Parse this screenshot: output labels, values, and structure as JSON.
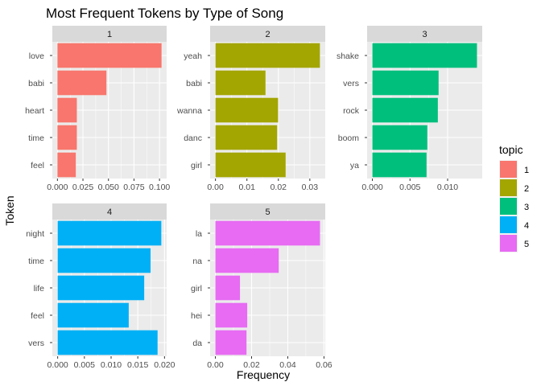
{
  "chart_data": {
    "type": "bar",
    "orientation": "horizontal",
    "title": "Most Frequent Tokens by Type of Song",
    "xlabel": "Frequency",
    "ylabel": "Token",
    "facet_layout": "3 columns x 2 rows",
    "grid": true,
    "legend": {
      "title": "topic",
      "position": "right",
      "items": [
        {
          "label": "1",
          "color": "#F8766D"
        },
        {
          "label": "2",
          "color": "#A3A500"
        },
        {
          "label": "3",
          "color": "#00BF7D"
        },
        {
          "label": "4",
          "color": "#00B0F6"
        },
        {
          "label": "5",
          "color": "#E76BF3"
        }
      ]
    },
    "panels": [
      {
        "strip": "1",
        "color": "#F8766D",
        "categories": [
          "love",
          "babi",
          "heart",
          "time",
          "feel"
        ],
        "values": [
          0.102,
          0.048,
          0.019,
          0.019,
          0.018
        ],
        "xlim": [
          -0.005,
          0.107
        ],
        "xticks": [
          0.0,
          0.025,
          0.05,
          0.075,
          0.1
        ],
        "xtick_labels": [
          "0.000",
          "0.025",
          "0.050",
          "0.075",
          "0.100"
        ]
      },
      {
        "strip": "2",
        "color": "#A3A500",
        "categories": [
          "yeah",
          "babi",
          "wanna",
          "danc",
          "girl"
        ],
        "values": [
          0.0332,
          0.0159,
          0.0199,
          0.0196,
          0.0223
        ],
        "xlim": [
          -0.0017,
          0.0349
        ],
        "xticks": [
          0.0,
          0.01,
          0.02,
          0.03
        ],
        "xtick_labels": [
          "0.00",
          "0.01",
          "0.02",
          "0.03"
        ]
      },
      {
        "strip": "3",
        "color": "#00BF7D",
        "categories": [
          "shake",
          "vers",
          "rock",
          "boom",
          "ya"
        ],
        "values": [
          0.0139,
          0.0088,
          0.0087,
          0.0073,
          0.0072
        ],
        "xlim": [
          -0.0007,
          0.0146
        ],
        "xticks": [
          0.0,
          0.005,
          0.01
        ],
        "xtick_labels": [
          "0.000",
          "0.005",
          "0.010"
        ]
      },
      {
        "strip": "4",
        "color": "#00B0F6",
        "categories": [
          "night",
          "time",
          "life",
          "feel",
          "vers"
        ],
        "values": [
          0.0194,
          0.0174,
          0.0162,
          0.0133,
          0.0187
        ],
        "xlim": [
          -0.001,
          0.0204
        ],
        "xticks": [
          0.0,
          0.005,
          0.01,
          0.015,
          0.02
        ],
        "xtick_labels": [
          "0.000",
          "0.005",
          "0.010",
          "0.015",
          "0.020"
        ]
      },
      {
        "strip": "5",
        "color": "#E76BF3",
        "categories": [
          "la",
          "na",
          "girl",
          "hei",
          "da"
        ],
        "values": [
          0.0578,
          0.035,
          0.0136,
          0.0176,
          0.0172
        ],
        "xlim": [
          -0.0029,
          0.0607
        ],
        "xticks": [
          0.0,
          0.02,
          0.04,
          0.06
        ],
        "xtick_labels": [
          "0.00",
          "0.02",
          "0.04",
          "0.06"
        ]
      }
    ]
  }
}
